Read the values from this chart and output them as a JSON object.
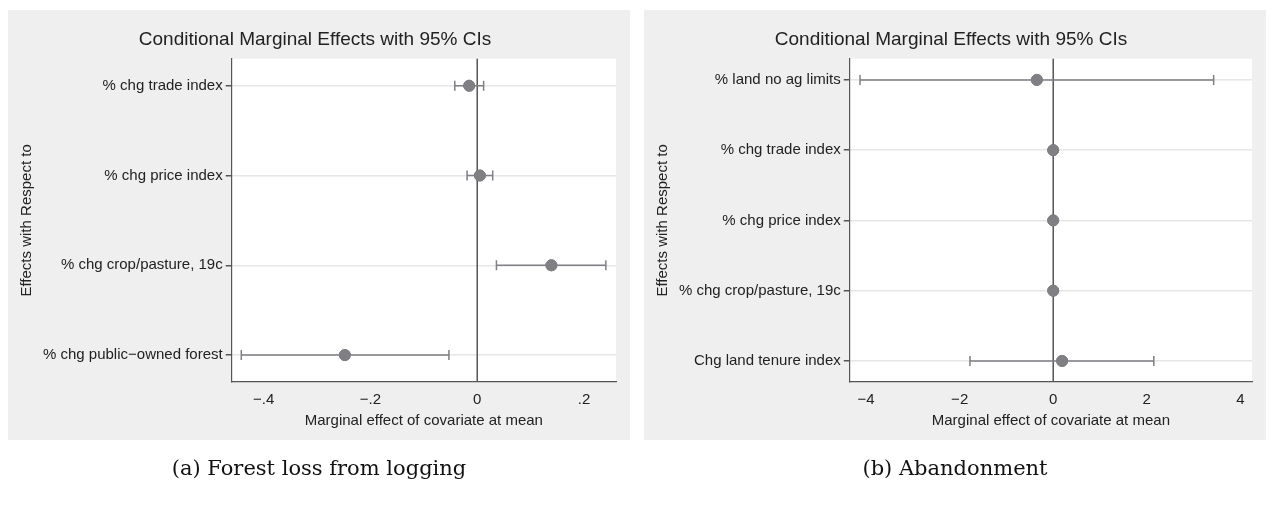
{
  "chart_data": [
    {
      "type": "scatter",
      "orientation": "horizontal",
      "title": "Conditional Marginal Effects with 95% CIs",
      "xlabel": "Marginal effect of covariate at mean",
      "ylabel": "Effects with Respect to",
      "categories": [
        "% chg trade index",
        "% chg price index",
        "% chg crop/pasture, 19c",
        "% chg public−owned forest"
      ],
      "values": [
        -0.015,
        0.005,
        0.139,
        -0.248
      ],
      "errors": [
        [
          -0.042,
          0.012
        ],
        [
          -0.019,
          0.029
        ],
        [
          0.036,
          0.241
        ],
        [
          -0.442,
          -0.053
        ]
      ],
      "color": "#7f7f84",
      "marker": "circle",
      "xlim": [
        -0.46,
        0.26
      ],
      "xticks": [
        {
          "value": -0.4,
          "label": "−.4"
        },
        {
          "value": -0.2,
          "label": "−.2"
        },
        0,
        {
          "value": 0.2,
          "label": ".2"
        }
      ],
      "ref_lines": [
        {
          "axis": "x",
          "value": 0,
          "color": "#555555"
        }
      ],
      "grid": "y",
      "legend": false,
      "annotations": [
        "(a) Forest loss from logging"
      ]
    },
    {
      "type": "scatter",
      "orientation": "horizontal",
      "title": "Conditional Marginal Effects with 95% CIs",
      "xlabel": "Marginal effect of covariate at mean",
      "ylabel": "Effects with Respect to",
      "categories": [
        "% land no ag limits",
        "% chg trade index",
        "% chg price index",
        "% chg crop/pasture, 19c",
        "Chg land tenure index"
      ],
      "values": [
        -0.35,
        0,
        0,
        0,
        0.19
      ],
      "errors": [
        [
          -4.13,
          3.43
        ],
        null,
        null,
        null,
        [
          -1.78,
          2.15
        ]
      ],
      "color": "#7f7f84",
      "marker": "circle",
      "xlim": [
        -4.35,
        4.25
      ],
      "xticks": [
        {
          "value": -4,
          "label": "−4"
        },
        {
          "value": -2,
          "label": "−2"
        },
        0,
        2,
        4
      ],
      "ref_lines": [
        {
          "axis": "x",
          "value": 0,
          "color": "#555555"
        }
      ],
      "grid": "y",
      "legend": false,
      "annotations": [
        "(b) Abandonment"
      ]
    }
  ]
}
